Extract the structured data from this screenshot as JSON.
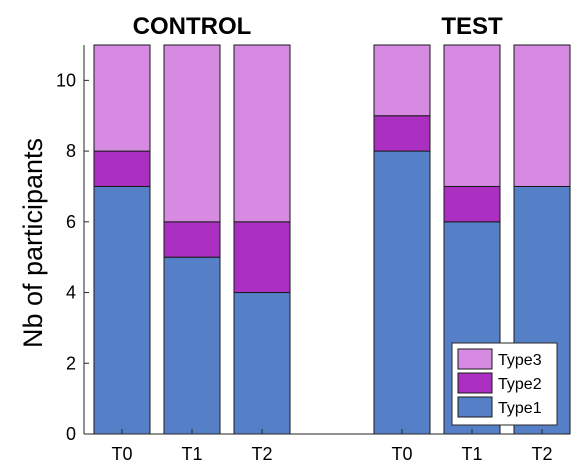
{
  "chart_data": {
    "type": "bar",
    "stacked": true,
    "ylabel": "Nb of participants",
    "ylim": [
      0,
      11
    ],
    "yticks": [
      0,
      2,
      4,
      6,
      8,
      10
    ],
    "groups": [
      {
        "title": "CONTROL",
        "categories": [
          "T0",
          "T1",
          "T2"
        ],
        "series": [
          {
            "name": "Type1",
            "values": [
              7,
              5,
              4
            ]
          },
          {
            "name": "Type2",
            "values": [
              1,
              1,
              2
            ]
          },
          {
            "name": "Type3",
            "values": [
              3,
              5,
              5
            ]
          }
        ]
      },
      {
        "title": "TEST",
        "categories": [
          "T0",
          "T1",
          "T2"
        ],
        "series": [
          {
            "name": "Type1",
            "values": [
              8,
              6,
              7
            ]
          },
          {
            "name": "Type2",
            "values": [
              1,
              1,
              0
            ]
          },
          {
            "name": "Type3",
            "values": [
              2,
              4,
              4
            ]
          }
        ]
      }
    ],
    "legend": {
      "position": "bottom-right",
      "entries": [
        "Type3",
        "Type2",
        "Type1"
      ]
    },
    "colors": {
      "Type1": "#5580C8",
      "Type2": "#AB2FC0",
      "Type3": "#D78AE1"
    },
    "grid": false
  }
}
